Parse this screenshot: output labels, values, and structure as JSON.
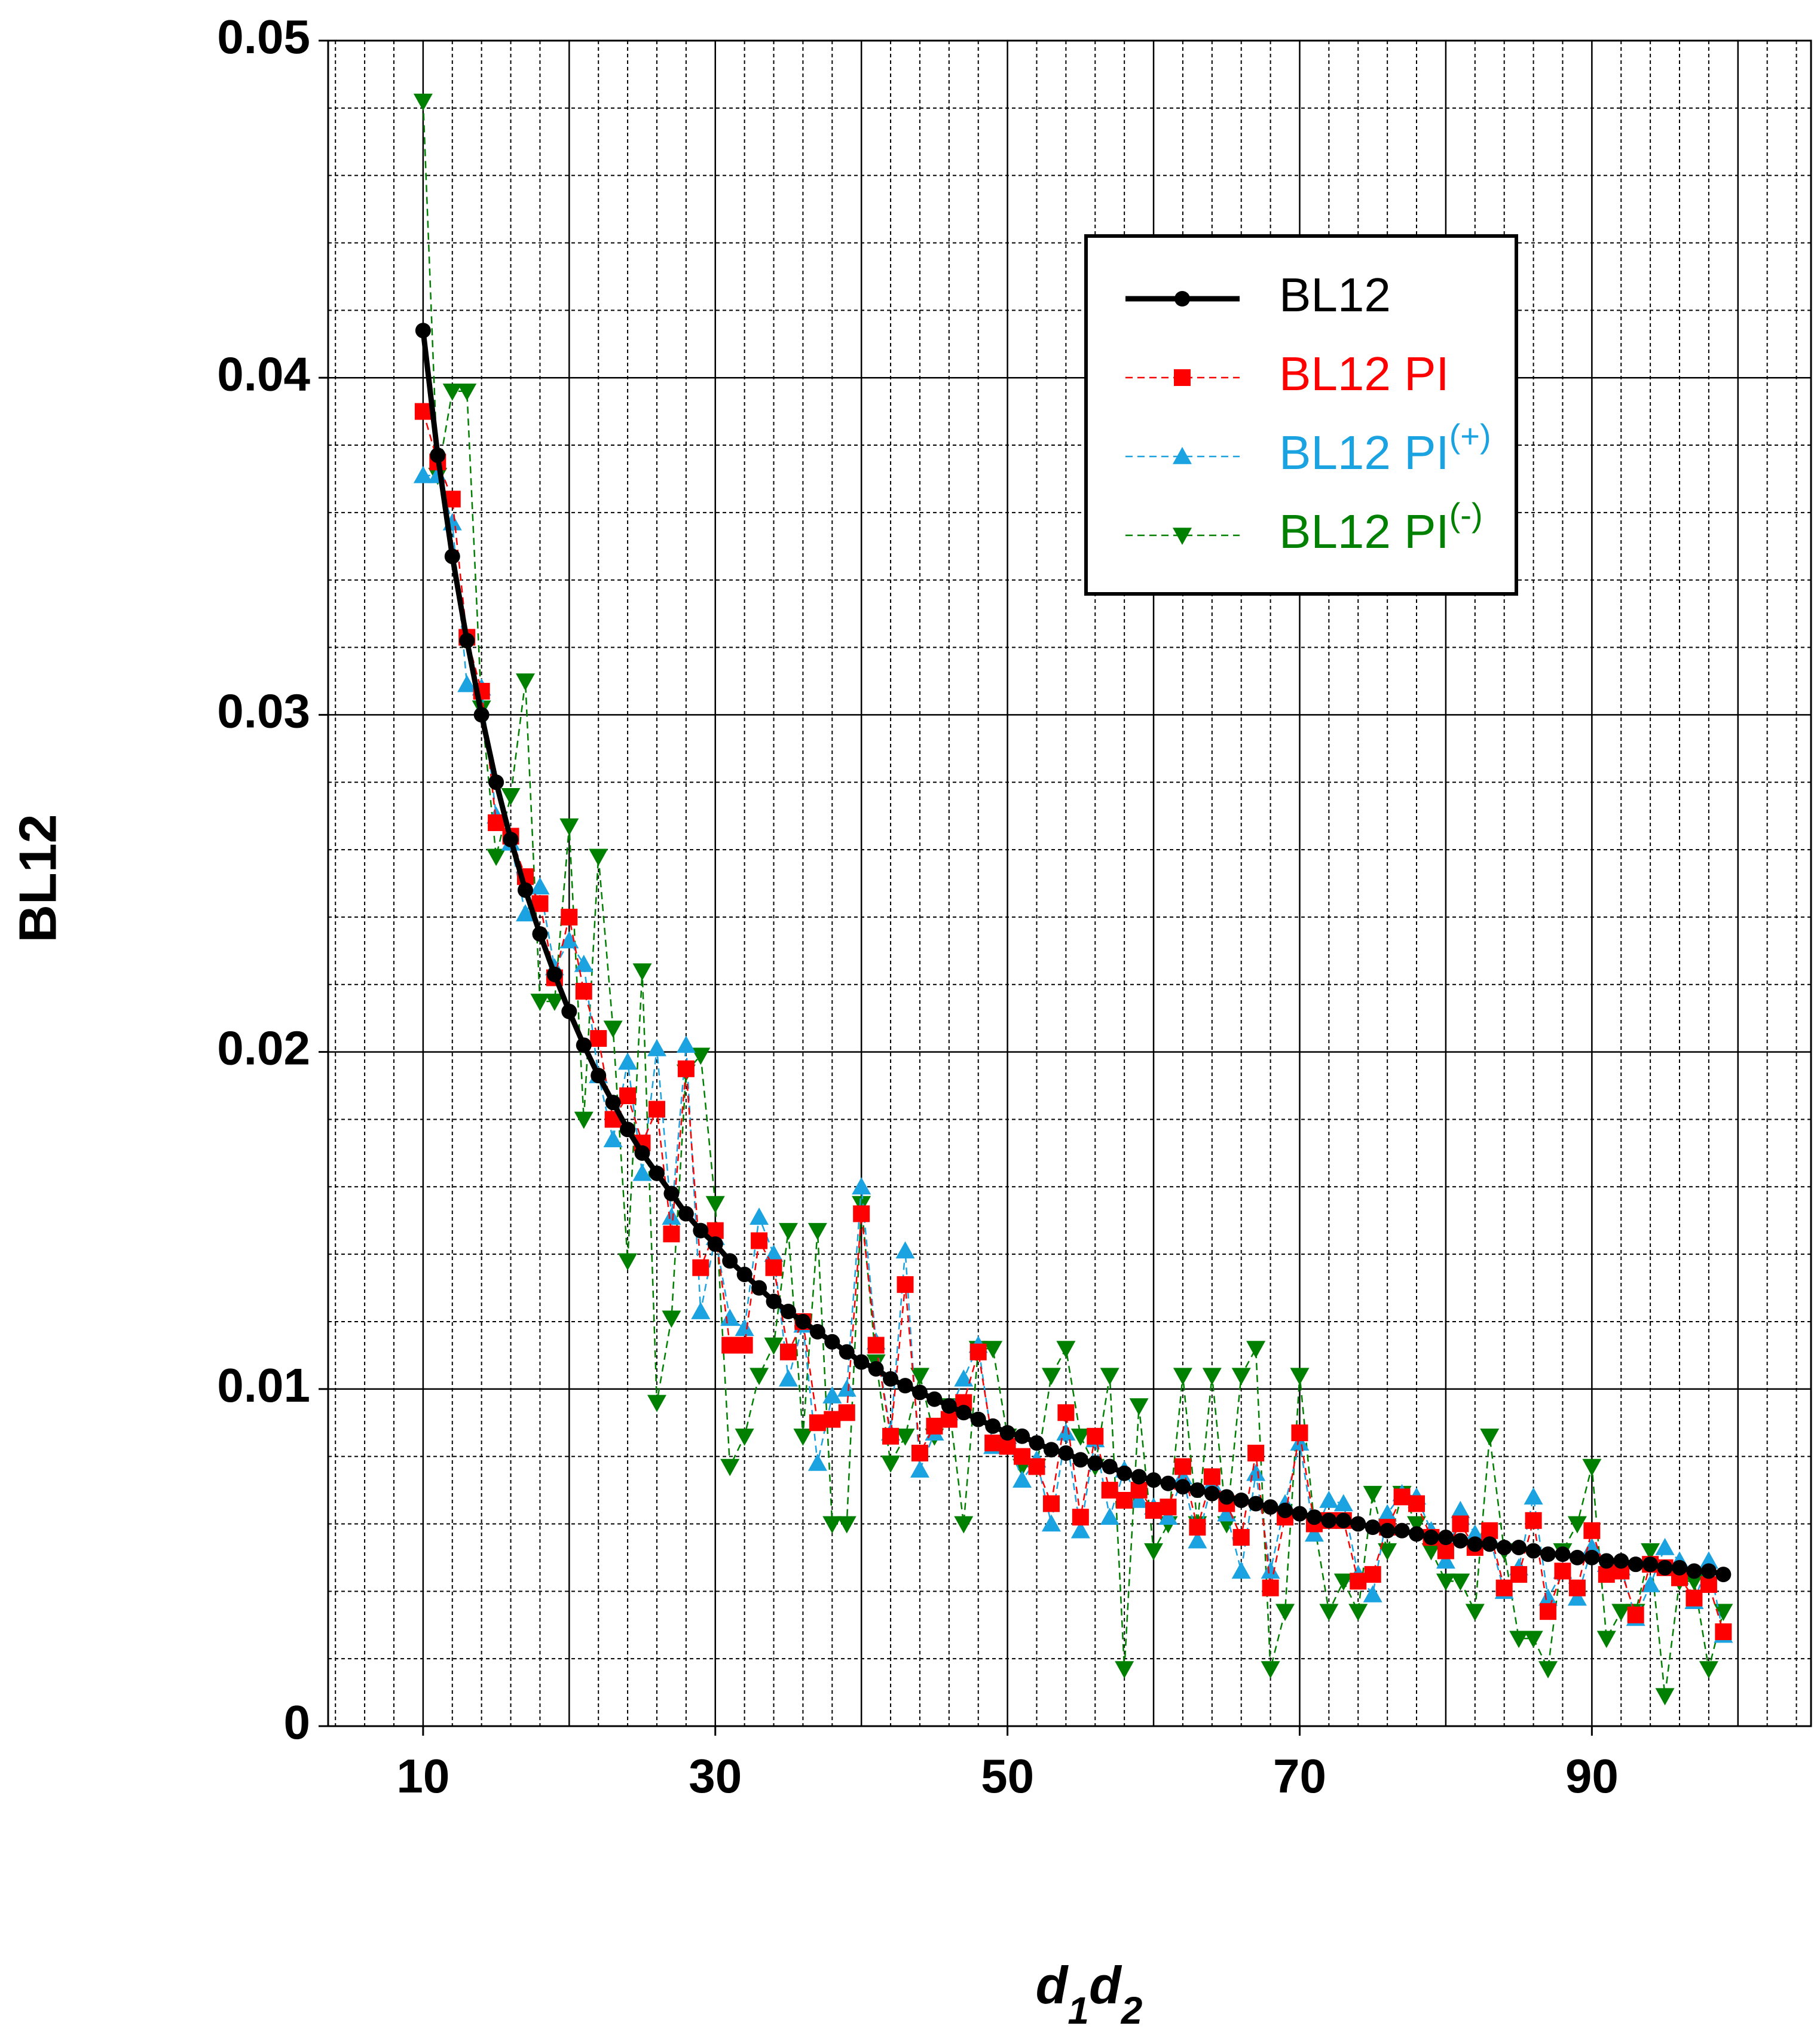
{
  "chart_data": {
    "type": "line",
    "ylabel": "BL12",
    "xlabel": [
      "d",
      "1",
      "d",
      "2"
    ],
    "x": [
      10,
      11,
      12,
      13,
      14,
      15,
      16,
      17,
      18,
      19,
      20,
      21,
      22,
      23,
      24,
      25,
      26,
      27,
      28,
      29,
      30,
      31,
      32,
      33,
      34,
      35,
      36,
      37,
      38,
      39,
      40,
      41,
      42,
      43,
      44,
      45,
      46,
      47,
      48,
      49,
      50,
      51,
      52,
      53,
      54,
      55,
      56,
      57,
      58,
      59,
      60,
      61,
      62,
      63,
      64,
      65,
      66,
      67,
      68,
      69,
      70,
      71,
      72,
      73,
      74,
      75,
      76,
      77,
      78,
      79,
      80,
      81,
      82,
      83,
      84,
      85,
      86,
      87,
      88,
      89,
      90,
      91,
      92,
      93,
      94,
      95,
      96,
      97,
      98,
      99
    ],
    "series": [
      {
        "name": "BL12",
        "color": "#000000",
        "marker": "circle",
        "dashed": false,
        "values": [
          0.0414,
          0.0377,
          0.0347,
          0.0322,
          0.03,
          0.028,
          0.0263,
          0.0248,
          0.0235,
          0.0223,
          0.0212,
          0.0202,
          0.0193,
          0.0185,
          0.0177,
          0.017,
          0.0164,
          0.0158,
          0.0152,
          0.0147,
          0.0143,
          0.0138,
          0.0134,
          0.013,
          0.0126,
          0.0123,
          0.012,
          0.0117,
          0.0114,
          0.0111,
          0.0108,
          0.0106,
          0.0103,
          0.0101,
          0.0099,
          0.0097,
          0.0095,
          0.0093,
          0.0091,
          0.0089,
          0.0087,
          0.0086,
          0.0084,
          0.0082,
          0.0081,
          0.0079,
          0.0078,
          0.0077,
          0.0075,
          0.0074,
          0.0073,
          0.0072,
          0.0071,
          0.007,
          0.0069,
          0.0068,
          0.0067,
          0.0066,
          0.0065,
          0.0064,
          0.0063,
          0.0062,
          0.0061,
          0.0061,
          0.006,
          0.0059,
          0.0058,
          0.0058,
          0.0057,
          0.0056,
          0.0056,
          0.0055,
          0.0054,
          0.0054,
          0.0053,
          0.0053,
          0.0052,
          0.0051,
          0.0051,
          0.005,
          0.005,
          0.0049,
          0.0049,
          0.0048,
          0.0048,
          0.0047,
          0.0047,
          0.0046,
          0.0046,
          0.0045
        ]
      },
      {
        "name": "BL12 PI",
        "color": "#ff0000",
        "marker": "square",
        "dashed": true,
        "values": [
          0.039,
          0.0375,
          0.0364,
          0.0323,
          0.0307,
          0.0268,
          0.0264,
          0.0252,
          0.0244,
          0.0222,
          0.024,
          0.0218,
          0.0204,
          0.018,
          0.0187,
          0.0173,
          0.0183,
          0.0146,
          0.0195,
          0.0136,
          0.0147,
          0.0113,
          0.0113,
          0.0144,
          0.0136,
          0.0111,
          0.012,
          0.009,
          0.0091,
          0.0093,
          0.0152,
          0.0113,
          0.0086,
          0.0131,
          0.0081,
          0.0089,
          0.0091,
          0.0096,
          0.0111,
          0.0084,
          0.0083,
          0.008,
          0.0077,
          0.0066,
          0.0093,
          0.0062,
          0.0086,
          0.007,
          0.0067,
          0.007,
          0.0064,
          0.0065,
          0.0077,
          0.0059,
          0.0074,
          0.0066,
          0.0056,
          0.0081,
          0.0041,
          0.0062,
          0.0087,
          0.006,
          0.0061,
          0.0061,
          0.0043,
          0.0045,
          0.0059,
          0.0068,
          0.0066,
          0.0056,
          0.0052,
          0.006,
          0.0053,
          0.0058,
          0.0041,
          0.0045,
          0.0061,
          0.0034,
          0.0046,
          0.0041,
          0.0058,
          0.0045,
          0.0046,
          0.0033,
          0.0048,
          0.0047,
          0.0044,
          0.0038,
          0.0042,
          0.0028
        ]
      },
      {
        "name": "BL12 PI(+)",
        "color": "#1aa3e0",
        "marker": "triangle-up",
        "dashed": true,
        "values": [
          0.0371,
          0.0371,
          0.0357,
          0.0309,
          0.0308,
          0.027,
          0.0262,
          0.0241,
          0.0249,
          0.0225,
          0.0233,
          0.0226,
          0.0193,
          0.0174,
          0.0197,
          0.0164,
          0.0201,
          0.0151,
          0.0202,
          0.0123,
          0.0145,
          0.0121,
          0.0118,
          0.0151,
          0.014,
          0.0103,
          0.0119,
          0.0078,
          0.0098,
          0.01,
          0.016,
          0.0114,
          0.0087,
          0.0141,
          0.0076,
          0.0087,
          0.0093,
          0.0103,
          0.0113,
          0.0083,
          0.0086,
          0.0073,
          0.0079,
          0.006,
          0.0087,
          0.0058,
          0.0085,
          0.0062,
          0.0076,
          0.0067,
          0.0065,
          0.0062,
          0.0074,
          0.0055,
          0.0072,
          0.0063,
          0.0046,
          0.0075,
          0.0046,
          0.0066,
          0.0084,
          0.0057,
          0.0067,
          0.0066,
          0.0045,
          0.0039,
          0.0063,
          0.0069,
          0.0068,
          0.0058,
          0.0049,
          0.0064,
          0.0057,
          0.0056,
          0.004,
          0.0047,
          0.0068,
          0.0038,
          0.0046,
          0.0038,
          0.0053,
          0.0048,
          0.0047,
          0.0032,
          0.0042,
          0.0053,
          0.0049,
          0.0037,
          0.0049,
          0.0027
        ]
      },
      {
        "name": "BL12 PI(-)",
        "color": "#008000",
        "marker": "triangle-down",
        "dashed": true,
        "values": [
          0.0482,
          0.0371,
          0.0396,
          0.0396,
          0.0302,
          0.0258,
          0.0276,
          0.031,
          0.0215,
          0.0215,
          0.0267,
          0.018,
          0.0258,
          0.0207,
          0.0138,
          0.0224,
          0.0096,
          0.0121,
          0.0194,
          0.0199,
          0.0155,
          0.0077,
          0.0086,
          0.0104,
          0.0113,
          0.0147,
          0.0086,
          0.0147,
          0.006,
          0.006,
          0.0155,
          0.0108,
          0.0078,
          0.0086,
          0.0104,
          0.0086,
          0.0095,
          0.006,
          0.0112,
          0.0112,
          0.0086,
          0.0077,
          0.0077,
          0.0104,
          0.0112,
          0.0086,
          0.0077,
          0.0104,
          0.0017,
          0.0095,
          0.0052,
          0.006,
          0.0104,
          0.006,
          0.0104,
          0.006,
          0.0104,
          0.0112,
          0.0017,
          0.0034,
          0.0104,
          0.006,
          0.0034,
          0.0043,
          0.0034,
          0.0069,
          0.0052,
          0.0069,
          0.006,
          0.0052,
          0.0043,
          0.0043,
          0.0034,
          0.0086,
          0.0052,
          0.0026,
          0.0026,
          0.0017,
          0.0052,
          0.006,
          0.0077,
          0.0026,
          0.0034,
          0.0034,
          0.0052,
          0.0009,
          0.0043,
          0.0043,
          0.0017,
          0.0034
        ]
      }
    ],
    "xlim": [
      3.5,
      105
    ],
    "ylim": [
      0,
      0.05
    ],
    "xticks": [
      10,
      30,
      50,
      70,
      90
    ],
    "yticks": [
      {
        "value": 0,
        "label": "0"
      },
      {
        "value": 0.01,
        "label": "0.01"
      },
      {
        "value": 0.02,
        "label": "0.02"
      },
      {
        "value": 0.03,
        "label": "0.03"
      },
      {
        "value": 0.04,
        "label": "0.04"
      },
      {
        "value": 0.05,
        "label": "0.05"
      }
    ],
    "xgrid": {
      "major": 10,
      "minor": 2
    },
    "ygrid": {
      "major": 0.01,
      "minor": 0.002
    },
    "legend": "upper-right"
  }
}
